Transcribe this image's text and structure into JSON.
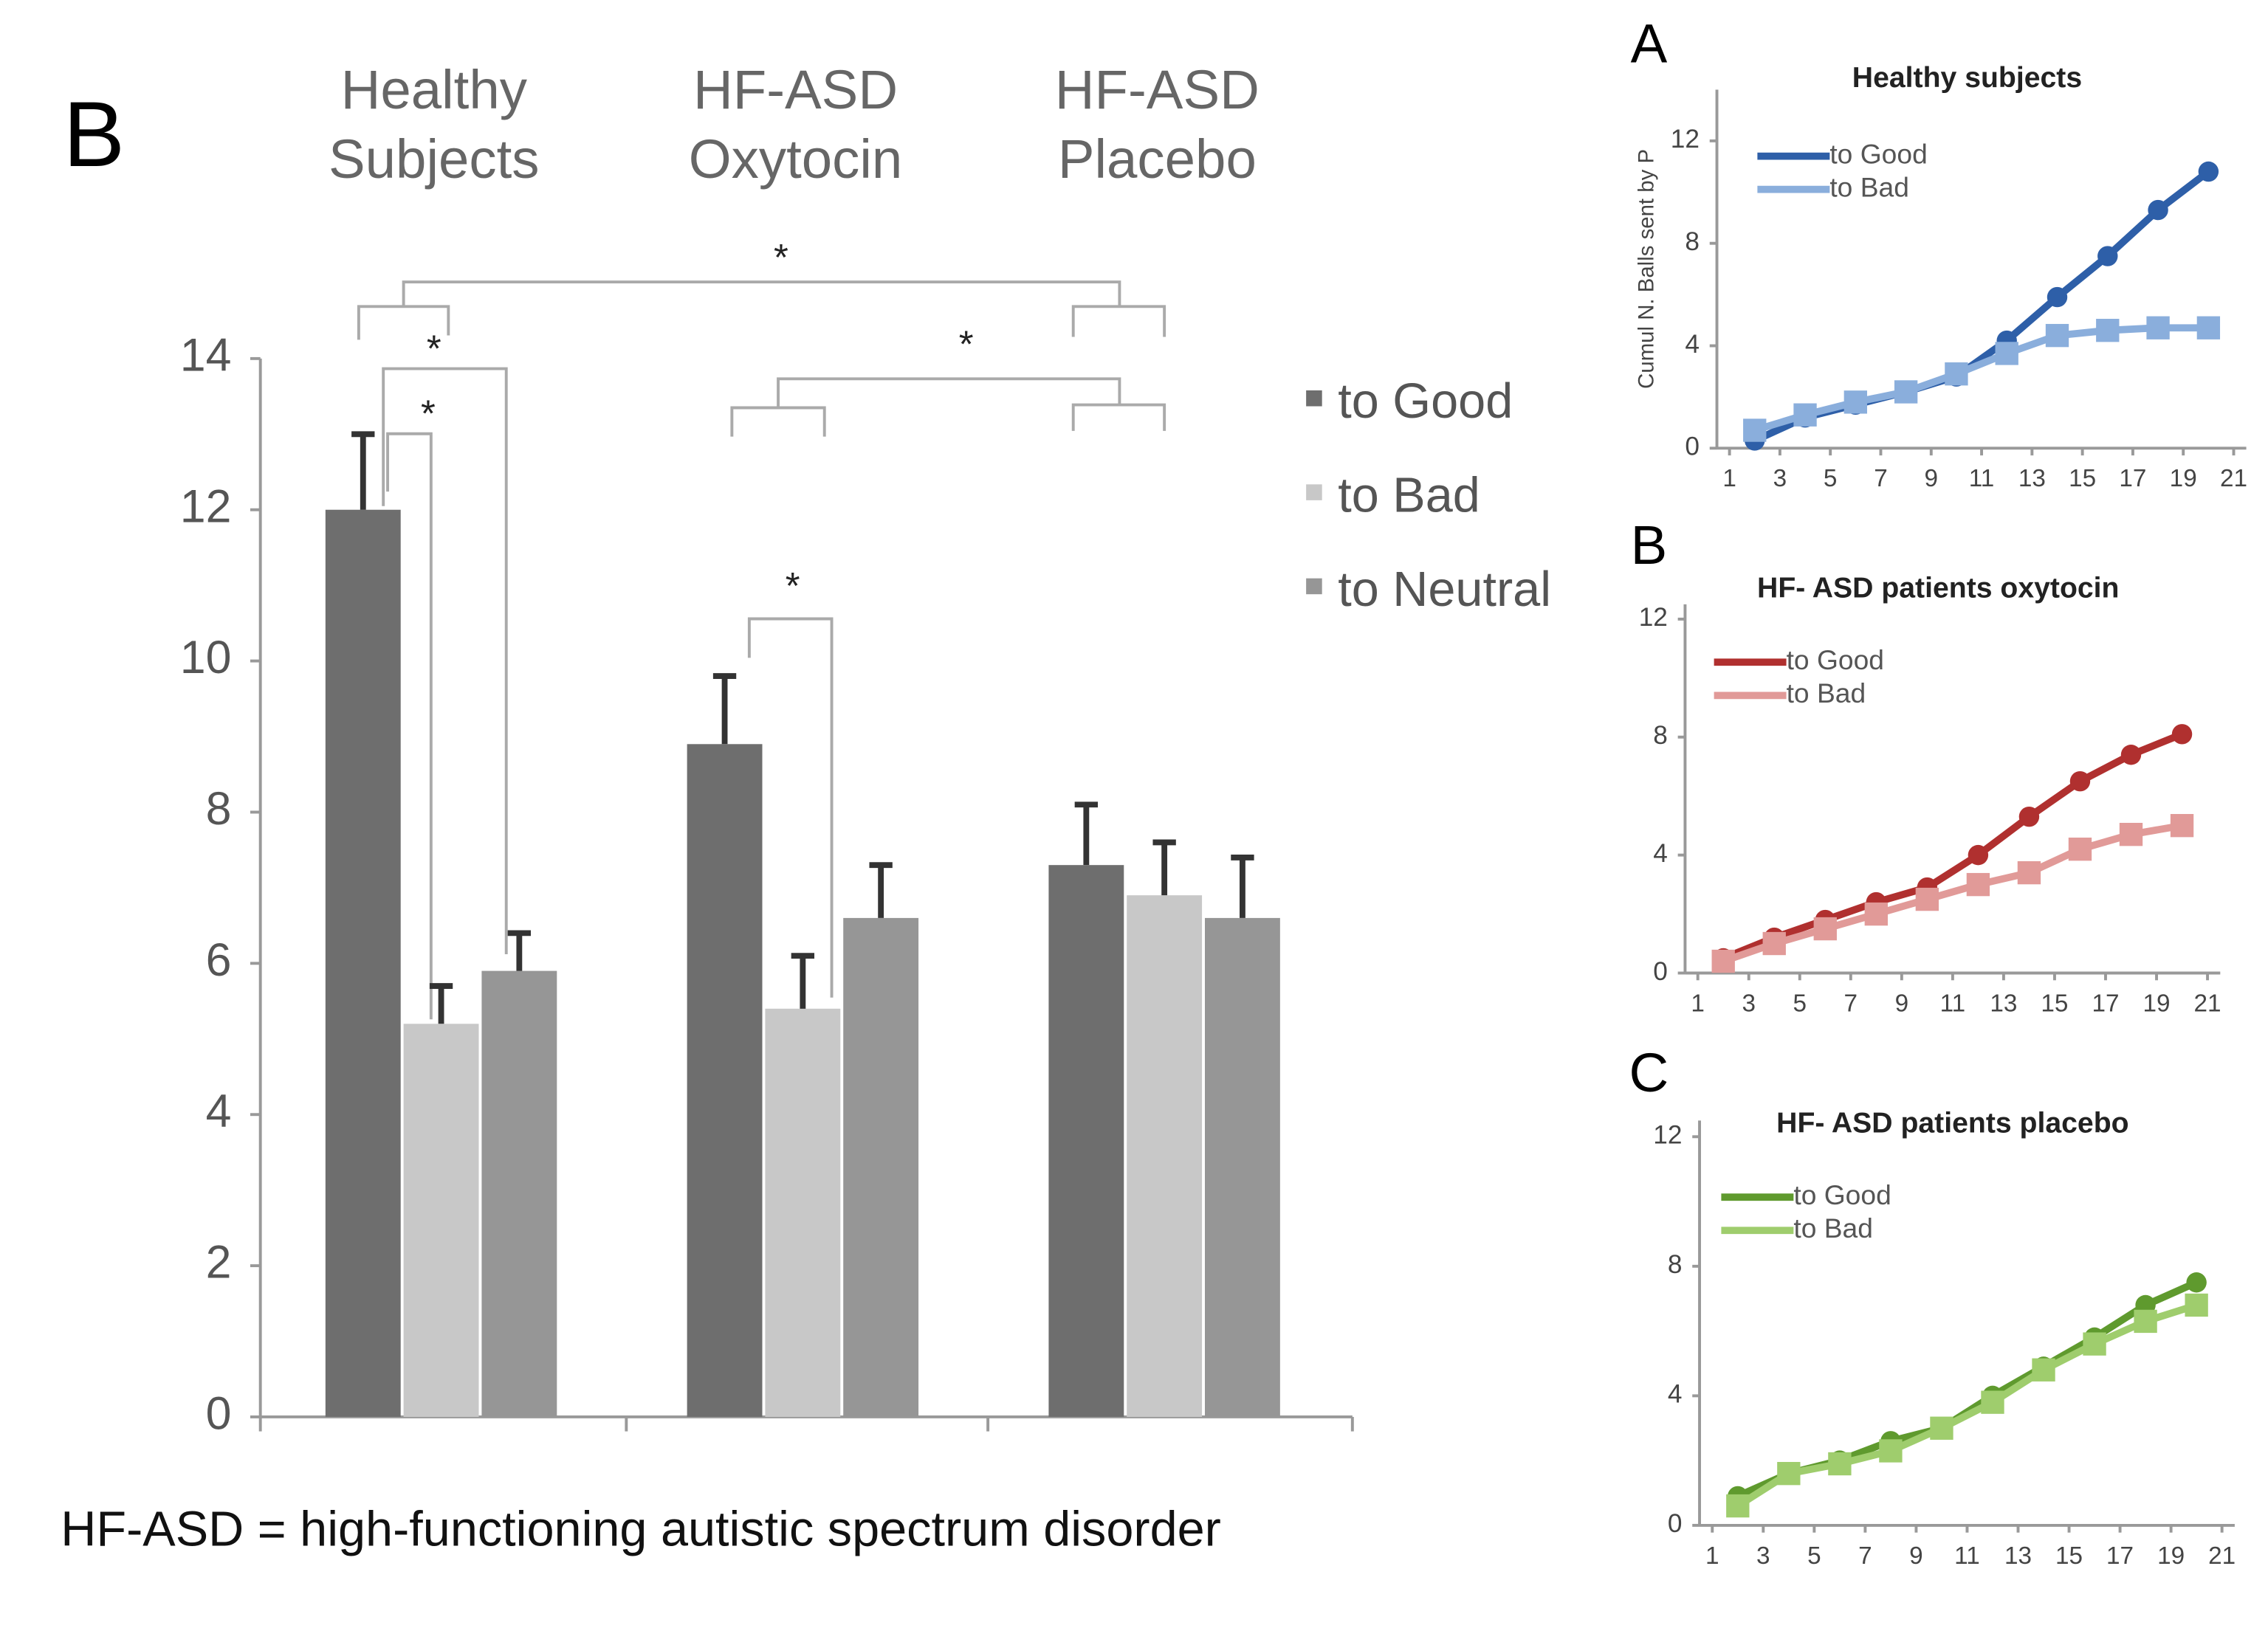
{
  "chart_data": [
    {
      "type": "bar",
      "panel": "B",
      "categories": [
        [
          "Healthy",
          "Subjects"
        ],
        [
          "HF-ASD",
          "Oxytocin"
        ],
        [
          "HF-ASD",
          "Placebo"
        ]
      ],
      "series": [
        {
          "name": "to Good",
          "color": "#6e6e6e",
          "values": [
            12.0,
            8.9,
            7.3
          ],
          "errors": [
            1.0,
            0.9,
            0.8
          ]
        },
        {
          "name": "to Bad",
          "color": "#c8c8c8",
          "values": [
            5.2,
            5.4,
            6.9
          ],
          "errors": [
            0.5,
            0.7,
            0.7
          ]
        },
        {
          "name": "to Neutral",
          "color": "#969696",
          "values": [
            5.9,
            6.6,
            6.6
          ],
          "errors": [
            0.5,
            0.7,
            0.8
          ]
        }
      ],
      "ylim": [
        0,
        14
      ],
      "yticks": [
        0,
        2,
        4,
        6,
        8,
        10,
        12,
        14
      ],
      "annotations": [
        "*",
        "*",
        "*",
        "*",
        "*"
      ],
      "note": "HF-ASD = high-functioning autistic spectrum  disorder"
    },
    {
      "type": "line",
      "panel": "A",
      "title": "Healthy subjects",
      "ylabel": "Cumul N. Balls sent by P",
      "x": [
        2,
        4,
        6,
        8,
        10,
        12,
        14,
        16,
        18,
        20
      ],
      "series": [
        {
          "name": "to Good",
          "color": "#2e5fa8",
          "values": [
            0.3,
            1.2,
            1.7,
            2.2,
            2.8,
            4.2,
            5.9,
            7.5,
            9.3,
            10.8
          ]
        },
        {
          "name": "to Bad",
          "color": "#8aaedc",
          "values": [
            0.7,
            1.3,
            1.8,
            2.2,
            2.9,
            3.7,
            4.4,
            4.6,
            4.7,
            4.7
          ]
        }
      ],
      "xlim": [
        0.5,
        21.5
      ],
      "xticks": [
        1,
        3,
        5,
        7,
        9,
        11,
        13,
        15,
        17,
        19,
        21
      ],
      "ylim": [
        0,
        14
      ],
      "yticks": [
        0,
        4,
        8,
        12
      ]
    },
    {
      "type": "line",
      "panel": "B",
      "title": "HF- ASD patients oxytocin",
      "x": [
        2,
        4,
        6,
        8,
        10,
        12,
        14,
        16,
        18,
        20
      ],
      "series": [
        {
          "name": "to Good",
          "color": "#b0302f",
          "values": [
            0.5,
            1.2,
            1.8,
            2.4,
            2.9,
            4.0,
            5.3,
            6.5,
            7.4,
            8.1
          ]
        },
        {
          "name": "to Bad",
          "color": "#e19a98",
          "values": [
            0.4,
            1.0,
            1.5,
            2.0,
            2.5,
            3.0,
            3.4,
            4.2,
            4.7,
            5.0
          ]
        }
      ],
      "xlim": [
        0.5,
        21.5
      ],
      "xticks": [
        1,
        3,
        5,
        7,
        9,
        11,
        13,
        15,
        17,
        19,
        21
      ],
      "ylim": [
        0,
        12.5
      ],
      "yticks": [
        0,
        4,
        8,
        12
      ]
    },
    {
      "type": "line",
      "panel": "C",
      "title": "HF- ASD patients placebo",
      "x": [
        2,
        4,
        6,
        8,
        10,
        12,
        14,
        16,
        18,
        20
      ],
      "series": [
        {
          "name": "to Good",
          "color": "#5f9a2e",
          "values": [
            0.9,
            1.6,
            2.0,
            2.6,
            3.0,
            4.0,
            4.9,
            5.8,
            6.8,
            7.5
          ]
        },
        {
          "name": "to Bad",
          "color": "#9fcd6d",
          "values": [
            0.6,
            1.6,
            1.9,
            2.3,
            3.0,
            3.8,
            4.8,
            5.6,
            6.3,
            6.8
          ]
        }
      ],
      "xlim": [
        0.5,
        21.5
      ],
      "xticks": [
        1,
        3,
        5,
        7,
        9,
        11,
        13,
        15,
        17,
        19,
        21
      ],
      "ylim": [
        0,
        12.5
      ],
      "yticks": [
        0,
        4,
        8,
        12
      ]
    }
  ]
}
